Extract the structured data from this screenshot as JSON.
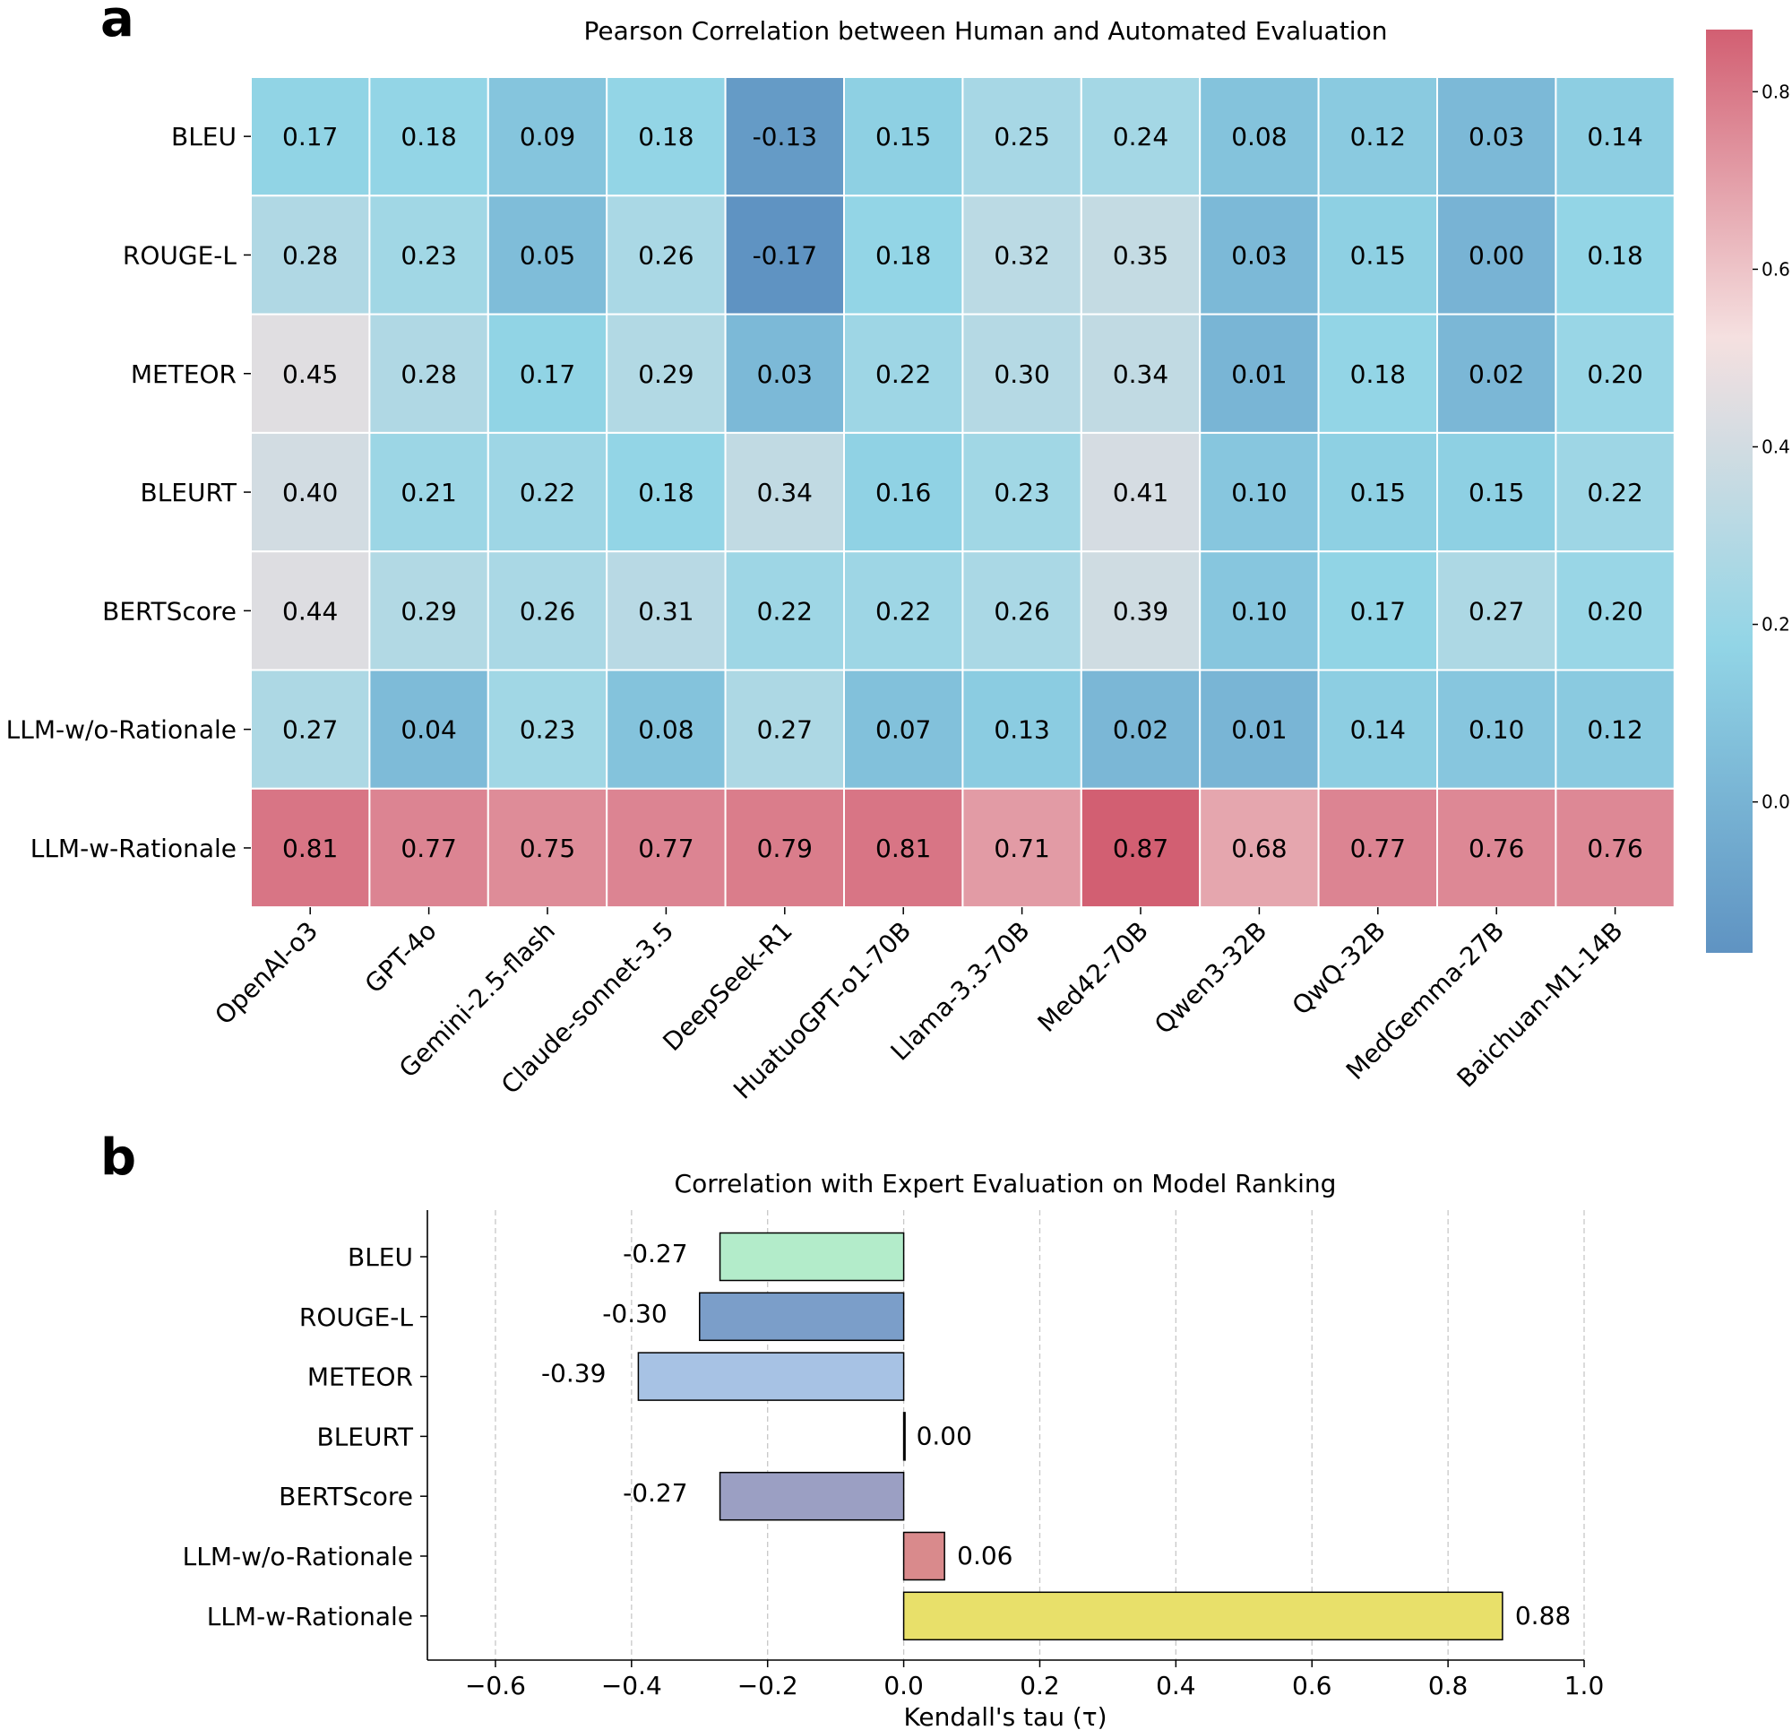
{
  "chart_data": [
    {
      "panel": "a",
      "type": "heatmap",
      "title": "Pearson Correlation between Human and Automated Evaluation",
      "rows": [
        "BLEU",
        "ROUGE-L",
        "METEOR",
        "BLEURT",
        "BERTScore",
        "LLM-w/o-Rationale",
        "LLM-w-Rationale"
      ],
      "columns": [
        "OpenAI-o3",
        "GPT-4o",
        "Gemini-2.5-flash",
        "Claude-sonnet-3.5",
        "DeepSeek-R1",
        "HuatuoGPT-o1-70B",
        "Llama-3.3-70B",
        "Med42-70B",
        "Qwen3-32B",
        "QwQ-32B",
        "MedGemma-27B",
        "Baichuan-M1-14B"
      ],
      "values": [
        [
          0.17,
          0.18,
          0.09,
          0.18,
          -0.13,
          0.15,
          0.25,
          0.24,
          0.08,
          0.12,
          0.03,
          0.14
        ],
        [
          0.28,
          0.23,
          0.05,
          0.26,
          -0.17,
          0.18,
          0.32,
          0.35,
          0.03,
          0.15,
          0.0,
          0.18
        ],
        [
          0.45,
          0.28,
          0.17,
          0.29,
          0.03,
          0.22,
          0.3,
          0.34,
          0.01,
          0.18,
          0.02,
          0.2
        ],
        [
          0.4,
          0.21,
          0.22,
          0.18,
          0.34,
          0.16,
          0.23,
          0.41,
          0.1,
          0.15,
          0.15,
          0.22
        ],
        [
          0.44,
          0.29,
          0.26,
          0.31,
          0.22,
          0.22,
          0.26,
          0.39,
          0.1,
          0.17,
          0.27,
          0.2
        ],
        [
          0.27,
          0.04,
          0.23,
          0.08,
          0.27,
          0.07,
          0.13,
          0.02,
          0.01,
          0.14,
          0.1,
          0.12
        ],
        [
          0.81,
          0.77,
          0.75,
          0.77,
          0.79,
          0.81,
          0.71,
          0.87,
          0.68,
          0.77,
          0.76,
          0.76
        ]
      ],
      "value_labels": [
        [
          "0.17",
          "0.18",
          "0.09",
          "0.18",
          "-0.13",
          "0.15",
          "0.25",
          "0.24",
          "0.08",
          "0.12",
          "0.03",
          "0.14"
        ],
        [
          "0.28",
          "0.23",
          "0.05",
          "0.26",
          "-0.17",
          "0.18",
          "0.32",
          "0.35",
          "0.03",
          "0.15",
          "0.00",
          "0.18"
        ],
        [
          "0.45",
          "0.28",
          "0.17",
          "0.29",
          "0.03",
          "0.22",
          "0.30",
          "0.34",
          "0.01",
          "0.18",
          "0.02",
          "0.20"
        ],
        [
          "0.40",
          "0.21",
          "0.22",
          "0.18",
          "0.34",
          "0.16",
          "0.23",
          "0.41",
          "0.10",
          "0.15",
          "0.15",
          "0.22"
        ],
        [
          "0.44",
          "0.29",
          "0.26",
          "0.31",
          "0.22",
          "0.22",
          "0.26",
          "0.39",
          "0.10",
          "0.17",
          "0.27",
          "0.20"
        ],
        [
          "0.27",
          "0.04",
          "0.23",
          "0.08",
          "0.27",
          "0.07",
          "0.13",
          "0.02",
          "0.01",
          "0.14",
          "0.10",
          "0.12"
        ],
        [
          "0.81",
          "0.77",
          "0.75",
          "0.77",
          "0.79",
          "0.81",
          "0.71",
          "0.87",
          "0.68",
          "0.77",
          "0.76",
          "0.76"
        ]
      ],
      "vmin": -0.17,
      "vmax": 0.87,
      "colorbar_ticks": [
        0.0,
        0.2,
        0.4,
        0.6,
        0.8
      ],
      "colorbar_tick_labels": [
        "0.0",
        "0.2",
        "0.4",
        "0.6",
        "0.8"
      ],
      "colormap": [
        "#5f93c2",
        "#92d5e6",
        "#f5e0e0",
        "#d25f72"
      ]
    },
    {
      "panel": "b",
      "type": "bar",
      "orientation": "horizontal",
      "title": "Correlation with Expert Evaluation on Model Ranking",
      "categories": [
        "BLEU",
        "ROUGE-L",
        "METEOR",
        "BLEURT",
        "BERTScore",
        "LLM-w/o-Rationale",
        "LLM-w-Rationale"
      ],
      "values": [
        -0.27,
        -0.3,
        -0.39,
        0.0,
        -0.27,
        0.06,
        0.88
      ],
      "value_labels": [
        "-0.27",
        "-0.30",
        "-0.39",
        "0.00",
        "-0.27",
        "0.06",
        "0.88"
      ],
      "colors": [
        "#b3ecca",
        "#7b9ec9",
        "#a7c2e4",
        "#ffffff",
        "#9b9fc3",
        "#d98a8c",
        "#e8e06a"
      ],
      "xlabel": "Kendall's tau (τ)",
      "xlim": [
        -0.7,
        1.0
      ],
      "xticks": [
        -0.6,
        -0.4,
        -0.2,
        0.0,
        0.2,
        0.4,
        0.6,
        0.8,
        1.0
      ],
      "xtick_labels": [
        "−0.6",
        "−0.4",
        "−0.2",
        "0.0",
        "0.2",
        "0.4",
        "0.6",
        "0.8",
        "1.0"
      ],
      "grid": "x-dashed"
    }
  ],
  "panels": {
    "a": "a",
    "b": "b"
  }
}
